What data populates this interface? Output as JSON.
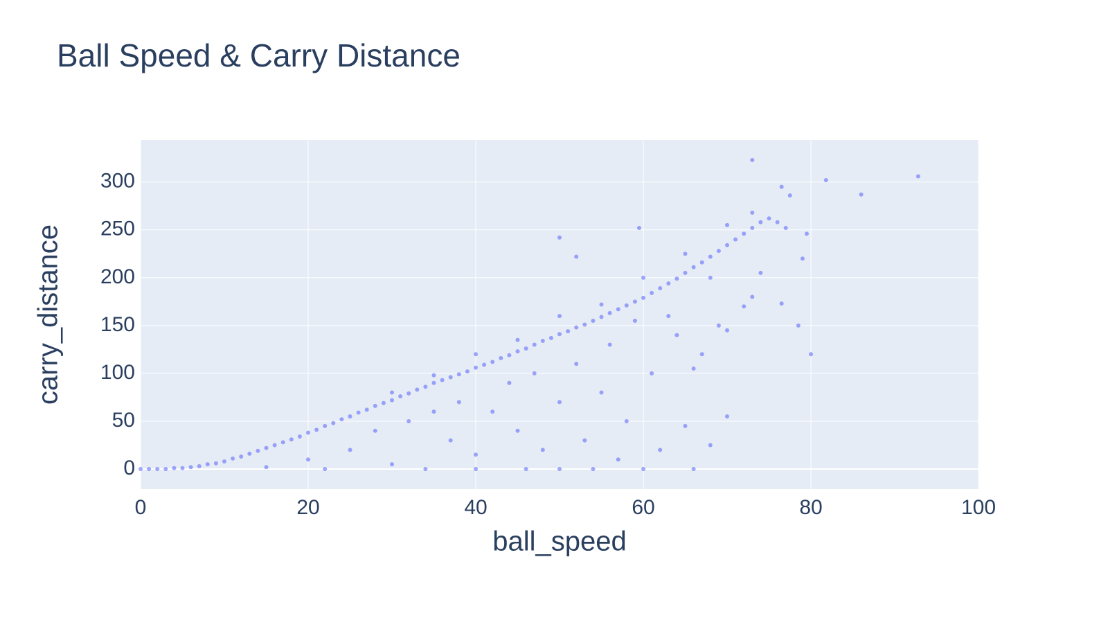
{
  "chart_data": {
    "type": "scatter",
    "title": "Ball Speed & Carry Distance",
    "x_label": "ball_speed",
    "y_label": "carry_distance",
    "color": "#636efa",
    "grid": true,
    "xlim": [
      0,
      100
    ],
    "xticks": [
      0,
      20,
      40,
      60,
      80,
      100
    ],
    "ylim": [
      -21,
      344
    ],
    "yticks": [
      0,
      50,
      100,
      150,
      200,
      250,
      300
    ],
    "x": [
      0,
      1,
      2,
      3,
      4,
      5,
      6,
      7,
      8,
      9,
      10,
      11,
      12,
      13,
      14,
      15,
      16,
      17,
      18,
      19,
      20,
      21,
      22,
      23,
      24,
      25,
      26,
      27,
      28,
      29,
      30,
      31,
      32,
      33,
      34,
      35,
      36,
      37,
      38,
      39,
      40,
      41,
      42,
      43,
      44,
      45,
      46,
      47,
      48,
      49,
      50,
      51,
      52,
      53,
      54,
      55,
      56,
      57,
      58,
      59,
      60,
      61,
      62,
      63,
      64,
      65,
      66,
      67,
      68,
      69,
      70,
      71,
      72,
      73,
      74,
      75,
      76,
      77,
      30,
      35,
      40,
      45,
      50,
      55,
      60,
      65,
      70,
      73,
      15,
      20,
      22,
      25,
      28,
      30,
      32,
      34,
      35,
      37,
      38,
      40,
      40,
      42,
      44,
      45,
      46,
      47,
      48,
      50,
      50,
      52,
      53,
      54,
      55,
      56,
      57,
      58,
      59,
      60,
      61,
      62,
      63,
      64,
      65,
      66,
      66,
      67,
      68,
      68,
      69,
      70,
      70,
      72,
      73,
      74,
      50,
      52,
      59.5,
      73,
      76.5,
      77.5,
      79.5,
      81.8,
      86,
      92.8,
      78.5,
      80,
      76.5,
      79
    ],
    "values": [
      0,
      0,
      0,
      0,
      1,
      1,
      2,
      3,
      5,
      6,
      8,
      11,
      13,
      16,
      19,
      22,
      25,
      28,
      31,
      34,
      38,
      41,
      45,
      48,
      52,
      55,
      59,
      62,
      66,
      69,
      72,
      76,
      79,
      83,
      86,
      90,
      93,
      96,
      99,
      102,
      106,
      109,
      112,
      116,
      119,
      123,
      126,
      130,
      134,
      137,
      141,
      144,
      148,
      151,
      155,
      159,
      163,
      167,
      171,
      175,
      179,
      184,
      189,
      194,
      199,
      205,
      211,
      216,
      222,
      228,
      234,
      240,
      246,
      252,
      258,
      262,
      258,
      252,
      80,
      98,
      120,
      135,
      160,
      172,
      200,
      225,
      255,
      268,
      2,
      10,
      0,
      20,
      40,
      5,
      50,
      0,
      60,
      30,
      70,
      15,
      0,
      60,
      90,
      40,
      0,
      100,
      20,
      70,
      0,
      110,
      30,
      0,
      80,
      130,
      10,
      50,
      155,
      0,
      100,
      20,
      160,
      140,
      45,
      105,
      0,
      120,
      25,
      200,
      150,
      145,
      55,
      170,
      180,
      205,
      242,
      222,
      252,
      323,
      295,
      286,
      246,
      302,
      287,
      306,
      150,
      120,
      173,
      220
    ]
  }
}
